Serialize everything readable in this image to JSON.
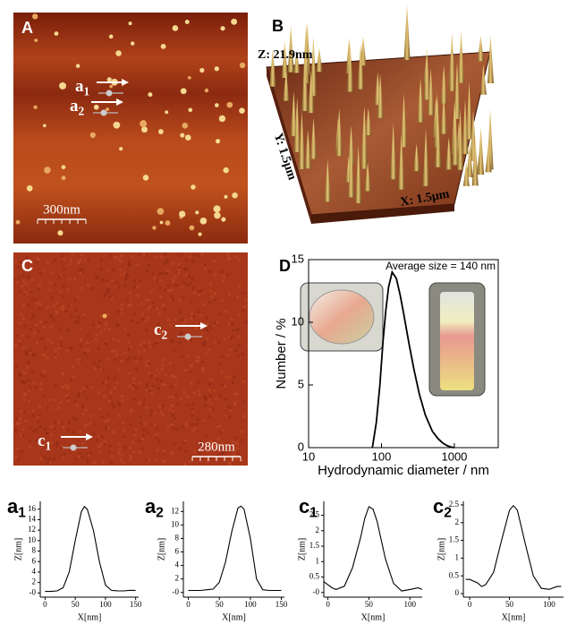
{
  "panels": {
    "A": {
      "label": "A",
      "markers": [
        {
          "text": "a",
          "subscript": "1"
        },
        {
          "text": "a",
          "subscript": "2"
        }
      ],
      "scale_bar": "300nm"
    },
    "B": {
      "label": "B",
      "z_axis": "Z: 21.9nm",
      "y_axis": "Y: 1.5μm",
      "x_axis": "X: 1.5μm"
    },
    "C": {
      "label": "C",
      "markers": [
        {
          "text": "c",
          "subscript": "1"
        },
        {
          "text": "c",
          "subscript": "2"
        }
      ],
      "scale_bar": "280nm"
    }
  },
  "chart_data": [
    {
      "type": "line",
      "panel_label": "D",
      "annotation": "Average size = 140 nm",
      "xlabel": "Hydrodynamic diameter / nm",
      "ylabel": "Number / %",
      "xscale": "log",
      "xlim": [
        10,
        4000
      ],
      "xticks": [
        10,
        100,
        1000
      ],
      "ylim": [
        0,
        15
      ],
      "yticks": [
        0,
        5,
        10,
        15
      ],
      "color": "#000000",
      "x": [
        75,
        85,
        95,
        105,
        115,
        125,
        140,
        160,
        180,
        200,
        240,
        280,
        330,
        400,
        500,
        600,
        700,
        800,
        900,
        1000
      ],
      "values": [
        0,
        2,
        5,
        8.5,
        11,
        12.8,
        14,
        13.5,
        12.2,
        10.8,
        8.2,
        6.2,
        4.3,
        2.6,
        1.3,
        0.7,
        0.35,
        0.15,
        0.05,
        0
      ]
    },
    {
      "type": "line",
      "panel_label": {
        "text": "a",
        "subscript": "1"
      },
      "xlabel": "X[nm]",
      "ylabel": "Z[nm]",
      "xlim": [
        -8,
        155
      ],
      "xticks": [
        0,
        50,
        100,
        150
      ],
      "ylim": [
        -0.8,
        17.5
      ],
      "yticks": [
        {
          "value": 0,
          "label": "-0"
        },
        2,
        4,
        6,
        8,
        10,
        12,
        14,
        16
      ],
      "color": "#000000",
      "x": [
        0,
        10,
        20,
        30,
        40,
        50,
        60,
        65,
        70,
        80,
        90,
        100,
        110,
        120,
        130,
        140,
        150
      ],
      "values": [
        0.3,
        0.3,
        0.4,
        1,
        4,
        10,
        15.5,
        16.5,
        16,
        12,
        6,
        1.5,
        0.5,
        0.4,
        0.4,
        0.5,
        0.5
      ]
    },
    {
      "type": "line",
      "panel_label": {
        "text": "a",
        "subscript": "2"
      },
      "xlabel": "X[nm]",
      "ylabel": "Z[nm]",
      "xlim": [
        -8,
        155
      ],
      "xticks": [
        0,
        50,
        100,
        150
      ],
      "ylim": [
        -0.7,
        13.5
      ],
      "yticks": [
        {
          "value": 0,
          "label": "-0"
        },
        2,
        4,
        6,
        8,
        10,
        12
      ],
      "color": "#000000",
      "x": [
        0,
        10,
        20,
        30,
        40,
        50,
        60,
        70,
        80,
        85,
        90,
        100,
        110,
        120,
        130,
        140,
        150
      ],
      "values": [
        0.3,
        0.3,
        0.3,
        0.4,
        0.5,
        1.5,
        4.5,
        9,
        12.5,
        12.8,
        12.3,
        8,
        2,
        0.4,
        0.3,
        0.3,
        0.3
      ]
    },
    {
      "type": "line",
      "panel_label": {
        "text": "c",
        "subscript": "1"
      },
      "xlabel": "X[nm]",
      "ylabel": "Z[nm]",
      "xlim": [
        -5,
        115
      ],
      "xticks": [
        0,
        50,
        100
      ],
      "ylim": [
        -0.15,
        2.95
      ],
      "yticks": [
        {
          "value": 0,
          "label": "-0"
        },
        0.5,
        1,
        1.5,
        2,
        2.5
      ],
      "color": "#000000",
      "x": [
        -5,
        0,
        5,
        10,
        20,
        30,
        40,
        45,
        50,
        55,
        60,
        70,
        80,
        90,
        100,
        110,
        115
      ],
      "values": [
        0.35,
        0.25,
        0.15,
        0.1,
        0.2,
        0.8,
        1.8,
        2.4,
        2.78,
        2.7,
        2.3,
        1.1,
        0.3,
        0.05,
        0.1,
        0.15,
        0.1
      ]
    },
    {
      "type": "line",
      "panel_label": {
        "text": "c",
        "subscript": "2"
      },
      "xlabel": "X[nm]",
      "ylabel": "Z[nm]",
      "xlim": [
        -8,
        118
      ],
      "xticks": [
        0,
        50,
        100
      ],
      "ylim": [
        -0.1,
        2.6
      ],
      "yticks": [
        0,
        0.5,
        1,
        1.5,
        2,
        2.5
      ],
      "color": "#000000",
      "x": [
        -5,
        0,
        10,
        15,
        20,
        30,
        40,
        50,
        55,
        60,
        70,
        80,
        90,
        100,
        110,
        115
      ],
      "values": [
        0.4,
        0.4,
        0.3,
        0.2,
        0.25,
        0.6,
        1.5,
        2.35,
        2.48,
        2.35,
        1.4,
        0.5,
        0.15,
        0.12,
        0.2,
        0.2
      ]
    }
  ]
}
